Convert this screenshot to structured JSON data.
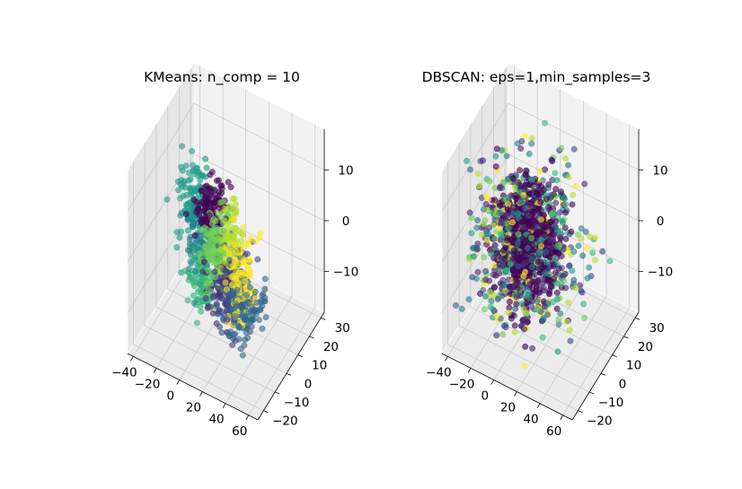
{
  "figure": {
    "background": "#ffffff"
  },
  "chart_data": [
    {
      "type": "scatter",
      "projection": "3d",
      "title": "KMeans: n_comp = 10",
      "xlabel": "",
      "ylabel": "",
      "zlabel": "",
      "x_ticks": [
        "−40",
        "−20",
        "0",
        "20",
        "40",
        "60"
      ],
      "y_ticks": [
        "−20",
        "−10",
        "0",
        "10",
        "20",
        "30"
      ],
      "z_ticks": [
        "−10",
        "0",
        "10"
      ],
      "xlim": [
        -45,
        68
      ],
      "ylim": [
        -25,
        33
      ],
      "zlim": [
        -18,
        18
      ],
      "grid": true,
      "legend": "none",
      "colormap": "viridis",
      "num_clusters": 10,
      "point_alpha": 0.6,
      "palette": [
        "#440154",
        "#482878",
        "#3e4989",
        "#31688e",
        "#26828e",
        "#1f9e89",
        "#35b779",
        "#6ece58",
        "#b5de2b",
        "#fde725"
      ],
      "cluster_centers": [
        {
          "cluster": 0,
          "x": 2,
          "y": 2,
          "z": 6,
          "spread": [
            6,
            4,
            3
          ]
        },
        {
          "cluster": 1,
          "x": 15,
          "y": 0,
          "z": -6,
          "spread": [
            6,
            5,
            4
          ]
        },
        {
          "cluster": 2,
          "x": 25,
          "y": -4,
          "z": -5,
          "spread": [
            7,
            4,
            4
          ]
        },
        {
          "cluster": 3,
          "x": 40,
          "y": -8,
          "z": -6,
          "spread": [
            8,
            5,
            3
          ]
        },
        {
          "cluster": 4,
          "x": -10,
          "y": 6,
          "z": -2,
          "spread": [
            6,
            4,
            4
          ]
        },
        {
          "cluster": 5,
          "x": -22,
          "y": 10,
          "z": 2,
          "spread": [
            6,
            4,
            4
          ]
        },
        {
          "cluster": 6,
          "x": -8,
          "y": 4,
          "z": -10,
          "spread": [
            6,
            4,
            3
          ]
        },
        {
          "cluster": 7,
          "x": 10,
          "y": -4,
          "z": 2,
          "spread": [
            5,
            4,
            4
          ]
        },
        {
          "cluster": 8,
          "x": 20,
          "y": 0,
          "z": 2,
          "spread": [
            5,
            4,
            4
          ]
        },
        {
          "cluster": 9,
          "x": 35,
          "y": -6,
          "z": -2,
          "spread": [
            5,
            4,
            4
          ]
        }
      ]
    },
    {
      "type": "scatter",
      "projection": "3d",
      "title": "DBSCAN: eps=1,min_samples=3",
      "xlabel": "",
      "ylabel": "",
      "zlabel": "",
      "x_ticks": [
        "−40",
        "−20",
        "0",
        "20",
        "40",
        "60"
      ],
      "y_ticks": [
        "−20",
        "−10",
        "0",
        "10",
        "20",
        "30"
      ],
      "z_ticks": [
        "−10",
        "0",
        "10"
      ],
      "xlim": [
        -45,
        68
      ],
      "ylim": [
        -25,
        33
      ],
      "zlim": [
        -18,
        18
      ],
      "grid": true,
      "legend": "none",
      "colormap": "viridis",
      "point_alpha": 0.6,
      "palette": [
        "#440154",
        "#482878",
        "#3e4989",
        "#31688e",
        "#26828e",
        "#1f9e89",
        "#35b779",
        "#6ece58",
        "#b5de2b",
        "#fde725"
      ],
      "dominant_cluster": {
        "cluster": 0,
        "color": "#440154",
        "x": 5,
        "y": 0,
        "z": 0,
        "spread": [
          12,
          6,
          6
        ]
      },
      "noise_spread": [
        22,
        10,
        8
      ]
    }
  ]
}
